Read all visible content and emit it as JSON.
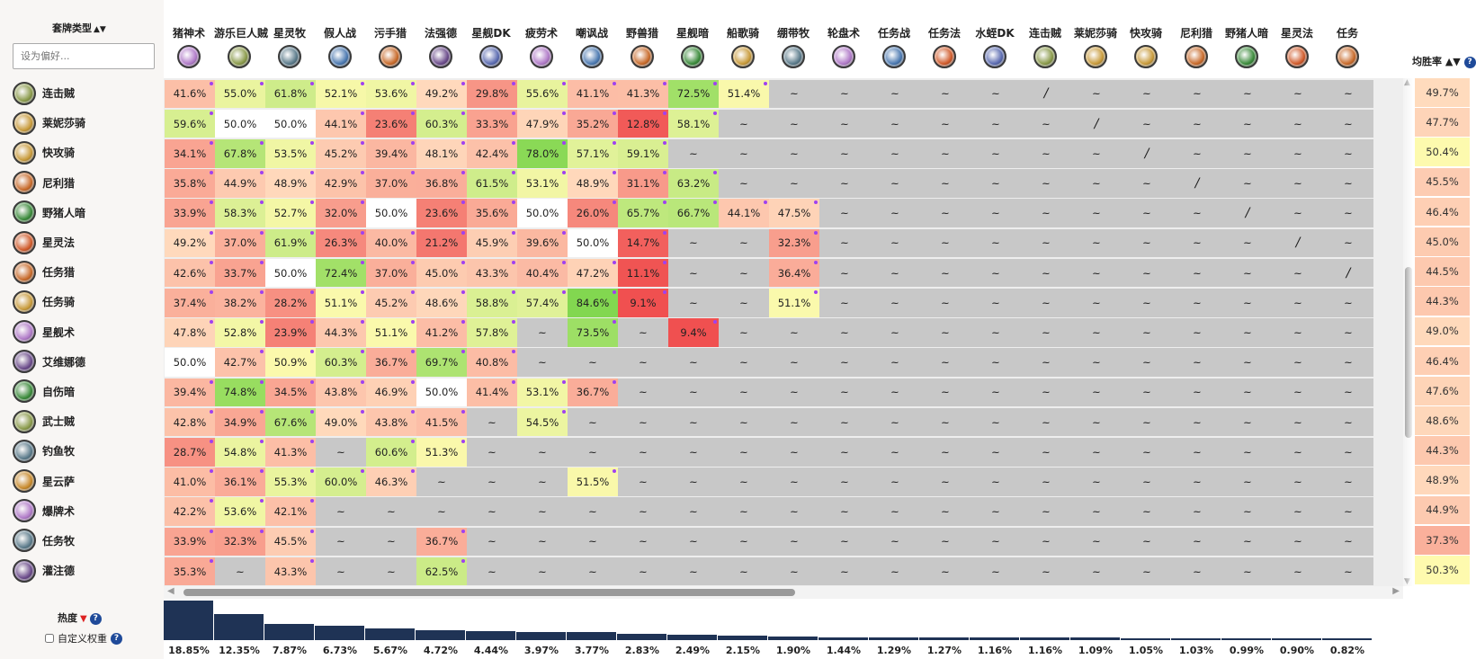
{
  "left": {
    "sort_label": "套牌类型",
    "sort_arrows": "▲▼",
    "search_placeholder": "设为偏好..."
  },
  "columns": [
    "猪神术",
    "游乐巨人贼",
    "星灵牧",
    "假人战",
    "污手猎",
    "法强德",
    "星舰DK",
    "疲劳术",
    "嘲讽战",
    "野兽猎",
    "星舰暗",
    "船歌骑",
    "绷带牧",
    "轮盘术",
    "任务战",
    "任务法",
    "水蛭DK",
    "连击贼",
    "莱妮莎骑",
    "快攻骑",
    "尼利猎",
    "野猪人暗",
    "星灵法",
    "任务"
  ],
  "column_icon_colors": [
    "#b07ac8",
    "#8a9a4a",
    "#5a7a8a",
    "#4a78b0",
    "#c86a2a",
    "#6a4a8a",
    "#5a6ab0",
    "#b07ac8",
    "#4a78b0",
    "#c86a2a",
    "#3a8a3a",
    "#c89a3a",
    "#5a7a8a",
    "#b07ac8",
    "#4a78b0",
    "#d05a2a",
    "#5a6ab0",
    "#8a9a4a",
    "#c89a3a",
    "#c89a3a",
    "#c86a2a",
    "#3a8a3a",
    "#d05a2a",
    "#c86a2a"
  ],
  "rows": [
    {
      "name": "连击贼",
      "icon": "#8a9a4a",
      "cells": [
        "41.6%",
        "55.0%",
        "61.8%",
        "52.1%",
        "53.6%",
        "49.2%",
        "29.8%",
        "55.6%",
        "41.1%",
        "41.3%",
        "72.5%",
        "51.4%",
        "~",
        "~",
        "~",
        "~",
        "~",
        "/",
        "~",
        "~",
        "~",
        "~",
        "~",
        "~"
      ],
      "wr": "49.7%"
    },
    {
      "name": "莱妮莎骑",
      "icon": "#c89a3a",
      "cells": [
        "59.6%",
        "50.0%",
        "50.0%",
        "44.1%",
        "23.6%",
        "60.3%",
        "33.3%",
        "47.9%",
        "35.2%",
        "12.8%",
        "58.1%",
        "~",
        "~",
        "~",
        "~",
        "~",
        "~",
        "~",
        "/",
        "~",
        "~",
        "~",
        "~",
        "~"
      ],
      "wr": "47.7%"
    },
    {
      "name": "快攻骑",
      "icon": "#c89a3a",
      "cells": [
        "34.1%",
        "67.8%",
        "53.5%",
        "45.2%",
        "39.4%",
        "48.1%",
        "42.4%",
        "78.0%",
        "57.1%",
        "59.1%",
        "~",
        "~",
        "~",
        "~",
        "~",
        "~",
        "~",
        "~",
        "~",
        "/",
        "~",
        "~",
        "~",
        "~"
      ],
      "wr": "50.4%"
    },
    {
      "name": "尼利猎",
      "icon": "#c86a2a",
      "cells": [
        "35.8%",
        "44.9%",
        "48.9%",
        "42.9%",
        "37.0%",
        "36.8%",
        "61.5%",
        "53.1%",
        "48.9%",
        "31.1%",
        "63.2%",
        "~",
        "~",
        "~",
        "~",
        "~",
        "~",
        "~",
        "~",
        "~",
        "/",
        "~",
        "~",
        "~"
      ],
      "wr": "45.5%"
    },
    {
      "name": "野猪人暗",
      "icon": "#3a8a3a",
      "cells": [
        "33.9%",
        "58.3%",
        "52.7%",
        "32.0%",
        "50.0%",
        "23.6%",
        "35.6%",
        "50.0%",
        "26.0%",
        "65.7%",
        "66.7%",
        "44.1%",
        "47.5%",
        "~",
        "~",
        "~",
        "~",
        "~",
        "~",
        "~",
        "~",
        "/",
        "~",
        "~"
      ],
      "wr": "46.4%"
    },
    {
      "name": "星灵法",
      "icon": "#d05a2a",
      "cells": [
        "49.2%",
        "37.0%",
        "61.9%",
        "26.3%",
        "40.0%",
        "21.2%",
        "45.9%",
        "39.6%",
        "50.0%",
        "14.7%",
        "~",
        "~",
        "32.3%",
        "~",
        "~",
        "~",
        "~",
        "~",
        "~",
        "~",
        "~",
        "~",
        "/",
        "~"
      ],
      "wr": "45.0%"
    },
    {
      "name": "任务猎",
      "icon": "#c86a2a",
      "cells": [
        "42.6%",
        "33.7%",
        "50.0%",
        "72.4%",
        "37.0%",
        "45.0%",
        "43.3%",
        "40.4%",
        "47.2%",
        "11.1%",
        "~",
        "~",
        "36.4%",
        "~",
        "~",
        "~",
        "~",
        "~",
        "~",
        "~",
        "~",
        "~",
        "~",
        "/"
      ],
      "wr": "44.5%"
    },
    {
      "name": "任务骑",
      "icon": "#c89a3a",
      "cells": [
        "37.4%",
        "38.2%",
        "28.2%",
        "51.1%",
        "45.2%",
        "48.6%",
        "58.8%",
        "57.4%",
        "84.6%",
        "9.1%",
        "~",
        "~",
        "51.1%",
        "~",
        "~",
        "~",
        "~",
        "~",
        "~",
        "~",
        "~",
        "~",
        "~",
        "~"
      ],
      "wr": "44.3%"
    },
    {
      "name": "星舰术",
      "icon": "#b07ac8",
      "cells": [
        "47.8%",
        "52.8%",
        "23.9%",
        "44.3%",
        "51.1%",
        "41.2%",
        "57.8%",
        "~",
        "73.5%",
        "~",
        "9.4%",
        "~",
        "~",
        "~",
        "~",
        "~",
        "~",
        "~",
        "~",
        "~",
        "~",
        "~",
        "~",
        "~"
      ],
      "wr": "49.0%"
    },
    {
      "name": "艾维娜德",
      "icon": "#6a4a8a",
      "cells": [
        "50.0%",
        "42.7%",
        "50.9%",
        "60.3%",
        "36.7%",
        "69.7%",
        "40.8%",
        "~",
        "~",
        "~",
        "~",
        "~",
        "~",
        "~",
        "~",
        "~",
        "~",
        "~",
        "~",
        "~",
        "~",
        "~",
        "~",
        "~"
      ],
      "wr": "46.4%"
    },
    {
      "name": "自伤暗",
      "icon": "#3a8a3a",
      "cells": [
        "39.4%",
        "74.8%",
        "34.5%",
        "43.8%",
        "46.9%",
        "50.0%",
        "41.4%",
        "53.1%",
        "36.7%",
        "~",
        "~",
        "~",
        "~",
        "~",
        "~",
        "~",
        "~",
        "~",
        "~",
        "~",
        "~",
        "~",
        "~",
        "~"
      ],
      "wr": "47.6%"
    },
    {
      "name": "武士贼",
      "icon": "#8a9a4a",
      "cells": [
        "42.8%",
        "34.9%",
        "67.6%",
        "49.0%",
        "43.8%",
        "41.5%",
        "~",
        "54.5%",
        "~",
        "~",
        "~",
        "~",
        "~",
        "~",
        "~",
        "~",
        "~",
        "~",
        "~",
        "~",
        "~",
        "~",
        "~",
        "~"
      ],
      "wr": "48.6%"
    },
    {
      "name": "钓鱼牧",
      "icon": "#5a7a8a",
      "cells": [
        "28.7%",
        "54.8%",
        "41.3%",
        "~",
        "60.6%",
        "51.3%",
        "~",
        "~",
        "~",
        "~",
        "~",
        "~",
        "~",
        "~",
        "~",
        "~",
        "~",
        "~",
        "~",
        "~",
        "~",
        "~",
        "~",
        "~"
      ],
      "wr": "44.3%"
    },
    {
      "name": "星云萨",
      "icon": "#c8892a",
      "cells": [
        "41.0%",
        "36.1%",
        "55.3%",
        "60.0%",
        "46.3%",
        "~",
        "~",
        "~",
        "51.5%",
        "~",
        "~",
        "~",
        "~",
        "~",
        "~",
        "~",
        "~",
        "~",
        "~",
        "~",
        "~",
        "~",
        "~",
        "~"
      ],
      "wr": "48.9%"
    },
    {
      "name": "爆牌术",
      "icon": "#b07ac8",
      "cells": [
        "42.2%",
        "53.6%",
        "42.1%",
        "~",
        "~",
        "~",
        "~",
        "~",
        "~",
        "~",
        "~",
        "~",
        "~",
        "~",
        "~",
        "~",
        "~",
        "~",
        "~",
        "~",
        "~",
        "~",
        "~",
        "~"
      ],
      "wr": "44.9%"
    },
    {
      "name": "任务牧",
      "icon": "#5a7a8a",
      "cells": [
        "33.9%",
        "32.3%",
        "45.5%",
        "~",
        "~",
        "36.7%",
        "~",
        "~",
        "~",
        "~",
        "~",
        "~",
        "~",
        "~",
        "~",
        "~",
        "~",
        "~",
        "~",
        "~",
        "~",
        "~",
        "~",
        "~"
      ],
      "wr": "37.3%"
    },
    {
      "name": "灌注德",
      "icon": "#6a4a8a",
      "cells": [
        "35.3%",
        "~",
        "43.3%",
        "~",
        "~",
        "62.5%",
        "~",
        "~",
        "~",
        "~",
        "~",
        "~",
        "~",
        "~",
        "~",
        "~",
        "~",
        "~",
        "~",
        "~",
        "~",
        "~",
        "~",
        "~"
      ],
      "wr": "50.3%"
    }
  ],
  "winrate_header": "均胜率",
  "winrate_sort": "▲▼",
  "help_glyph": "?",
  "popularity": {
    "label": "热度",
    "sort_glyph": "▼",
    "custom_weight_label": "自定义权重",
    "values": [
      18.85,
      12.35,
      7.87,
      6.73,
      5.67,
      4.72,
      4.44,
      3.97,
      3.77,
      2.83,
      2.49,
      2.15,
      1.9,
      1.44,
      1.29,
      1.27,
      1.16,
      1.16,
      1.09,
      1.05,
      1.03,
      0.99,
      0.9,
      0.82
    ],
    "labels": [
      "18.85%",
      "12.35%",
      "7.87%",
      "6.73%",
      "5.67%",
      "4.72%",
      "4.44%",
      "3.97%",
      "3.77%",
      "2.83%",
      "2.49%",
      "2.15%",
      "1.90%",
      "1.44%",
      "1.29%",
      "1.27%",
      "1.16%",
      "1.16%",
      "1.09%",
      "1.05%",
      "1.03%",
      "0.99%",
      "0.90%",
      "0.82%"
    ]
  },
  "scroll": {
    "up": "▲",
    "down": "▼",
    "left": "◀",
    "right": "▶"
  }
}
